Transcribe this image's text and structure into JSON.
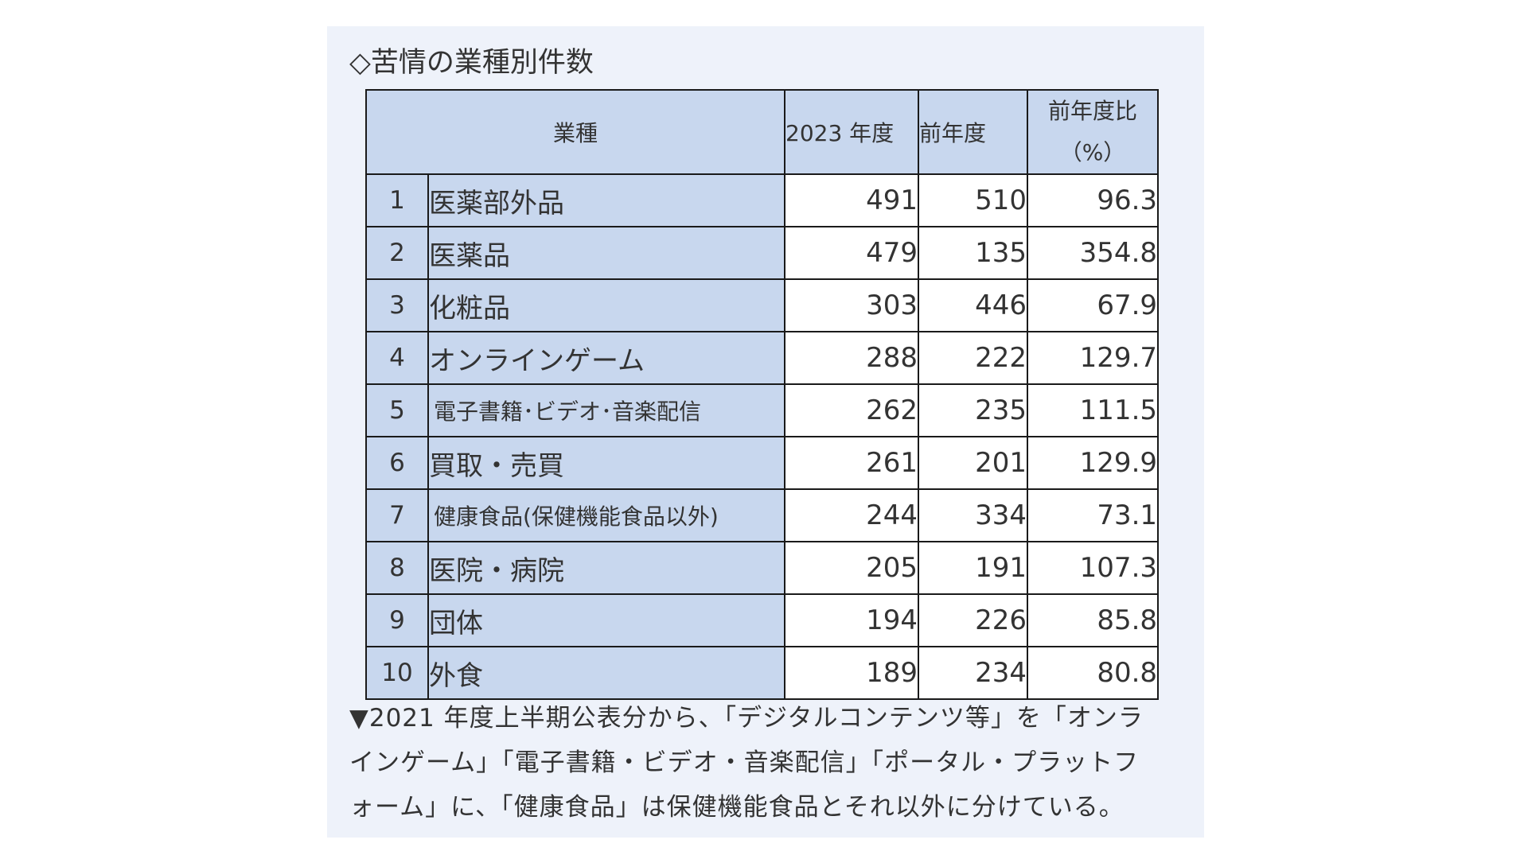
{
  "title": "◇苦情の業種別件数",
  "table": {
    "headers": {
      "industry": "業種",
      "year2023": "2023 年度",
      "prev_year": "前年度",
      "ratio_line1": "前年度比",
      "ratio_line2": "（%）"
    },
    "rows": [
      {
        "rank": "1",
        "industry": "医薬部外品",
        "y2023": "491",
        "prev": "510",
        "ratio": "96.3"
      },
      {
        "rank": "2",
        "industry": "医薬品",
        "y2023": "479",
        "prev": "135",
        "ratio": "354.8"
      },
      {
        "rank": "3",
        "industry": "化粧品",
        "y2023": "303",
        "prev": "446",
        "ratio": "67.9"
      },
      {
        "rank": "4",
        "industry": "オンラインゲーム",
        "y2023": "288",
        "prev": "222",
        "ratio": "129.7"
      },
      {
        "rank": "5",
        "industry": "電子書籍･ビデオ･音楽配信",
        "y2023": "262",
        "prev": "235",
        "ratio": "111.5"
      },
      {
        "rank": "6",
        "industry": "買取・売買",
        "y2023": "261",
        "prev": "201",
        "ratio": "129.9"
      },
      {
        "rank": "7",
        "industry": "健康食品(保健機能食品以外)",
        "y2023": "244",
        "prev": "334",
        "ratio": "73.1"
      },
      {
        "rank": "8",
        "industry": "医院・病院",
        "y2023": "205",
        "prev": "191",
        "ratio": "107.3"
      },
      {
        "rank": "9",
        "industry": "団体",
        "y2023": "194",
        "prev": "226",
        "ratio": "85.8"
      },
      {
        "rank": "10",
        "industry": "外食",
        "y2023": "189",
        "prev": "234",
        "ratio": "80.8"
      }
    ]
  },
  "note": {
    "line1": "▼2021 年度上半期公表分から、「デジタルコンテンツ等」を「オンラ",
    "line2": "インゲーム」「電子書籍・ビデオ・音楽配信」「ポータル・プラットフ",
    "line3": "ォーム」に、「健康食品」は保健機能食品とそれ以外に分けている。"
  },
  "colors": {
    "panel_background": "#eef2fa",
    "header_fill": "#c8d7ee",
    "border": "#1a1a1a",
    "text": "#333333"
  }
}
